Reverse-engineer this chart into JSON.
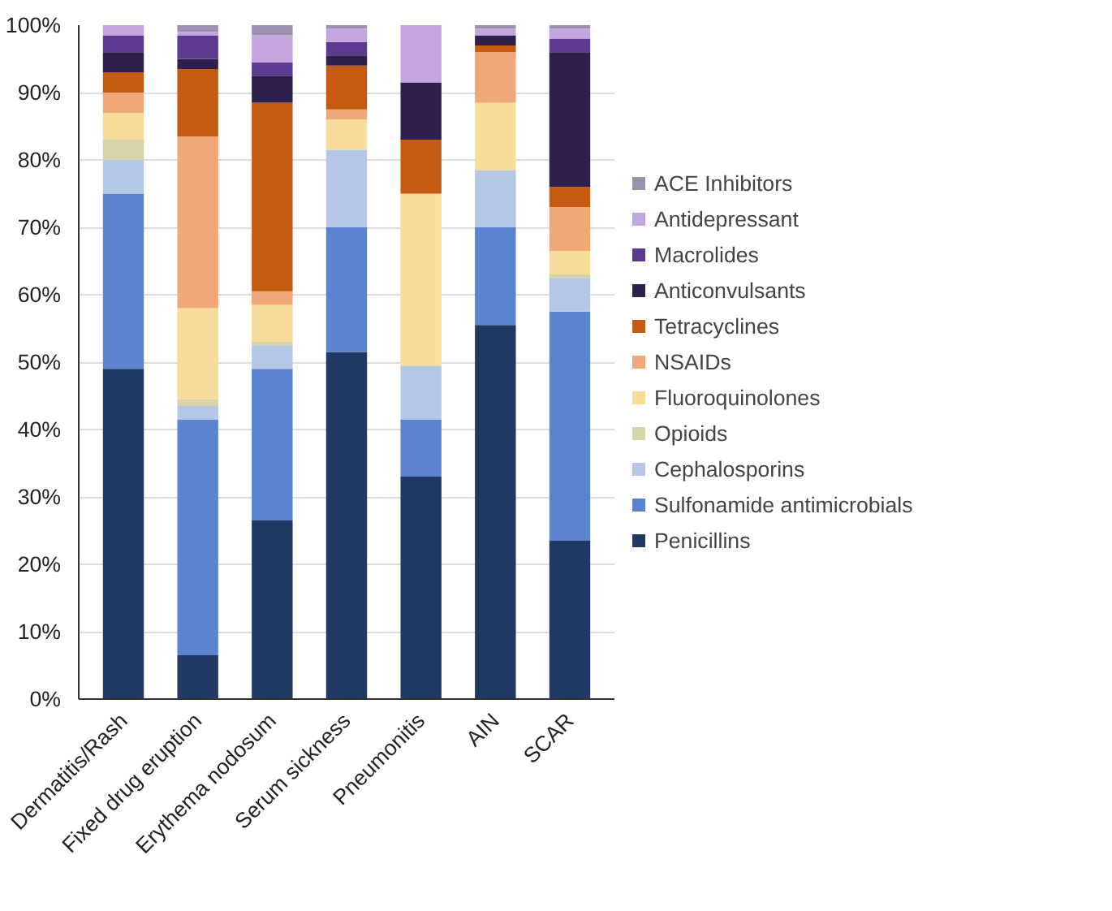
{
  "chart_data": {
    "type": "bar",
    "stacked": true,
    "categories": [
      "Dermatitis/Rash",
      "Fixed drug eruption",
      "Erythema nodosum",
      "Serum sickness",
      "Pneumonitis",
      "AIN",
      "SCAR"
    ],
    "series": [
      {
        "name": "Penicillins",
        "color": "#1f3864",
        "values": [
          49,
          6.5,
          26.5,
          51.5,
          33,
          55.5,
          23.5
        ]
      },
      {
        "name": "Sulfonamide antimicrobials",
        "color": "#5b84d0",
        "values": [
          26,
          35,
          22.5,
          18.5,
          8.5,
          14.5,
          34
        ]
      },
      {
        "name": "Cephalosporins",
        "color": "#b4c7e7",
        "values": [
          5,
          2,
          3.5,
          11.5,
          8,
          8.5,
          5
        ]
      },
      {
        "name": "Opioids",
        "color": "#d6d3a8",
        "values": [
          3,
          1,
          0.5,
          0,
          0,
          0,
          0.5
        ]
      },
      {
        "name": "Fluoroquinolones",
        "color": "#f7dc9b",
        "values": [
          4,
          13.5,
          5.5,
          4.5,
          25.5,
          10,
          3.5
        ]
      },
      {
        "name": "NSAIDs",
        "color": "#f0a878",
        "values": [
          3,
          25.5,
          2,
          1.5,
          0,
          7.5,
          6.5
        ]
      },
      {
        "name": "Tetracyclines",
        "color": "#c55a11",
        "values": [
          3,
          10,
          28,
          6.5,
          8,
          1,
          3
        ]
      },
      {
        "name": "Anticonvulsants",
        "color": "#2e1f4d",
        "values": [
          3,
          1.5,
          4,
          1.5,
          8.5,
          1.5,
          20
        ]
      },
      {
        "name": "Macrolides",
        "color": "#5b3a8f",
        "values": [
          2.5,
          3.5,
          2,
          2,
          0,
          0,
          2
        ]
      },
      {
        "name": "Antidepressant",
        "color": "#c5a5e0",
        "values": [
          1.5,
          0.5,
          4,
          2,
          8.5,
          1,
          1.5
        ]
      },
      {
        "name": "ACE Inhibitors",
        "color": "#9d8fb0",
        "values": [
          0,
          1,
          1.5,
          0.5,
          0,
          0.5,
          0.5
        ]
      }
    ],
    "ylim": [
      0,
      100
    ],
    "yticks": [
      {
        "value": 0,
        "label": "0%"
      },
      {
        "value": 10,
        "label": "10%"
      },
      {
        "value": 20,
        "label": "20%"
      },
      {
        "value": 30,
        "label": "30%"
      },
      {
        "value": 40,
        "label": "40%"
      },
      {
        "value": 50,
        "label": "50%"
      },
      {
        "value": 60,
        "label": "60%"
      },
      {
        "value": 70,
        "label": "70%"
      },
      {
        "value": 80,
        "label": "80%"
      },
      {
        "value": 90,
        "label": "90%"
      },
      {
        "value": 100,
        "label": "100%"
      }
    ],
    "grid": "y",
    "legend": "right"
  }
}
